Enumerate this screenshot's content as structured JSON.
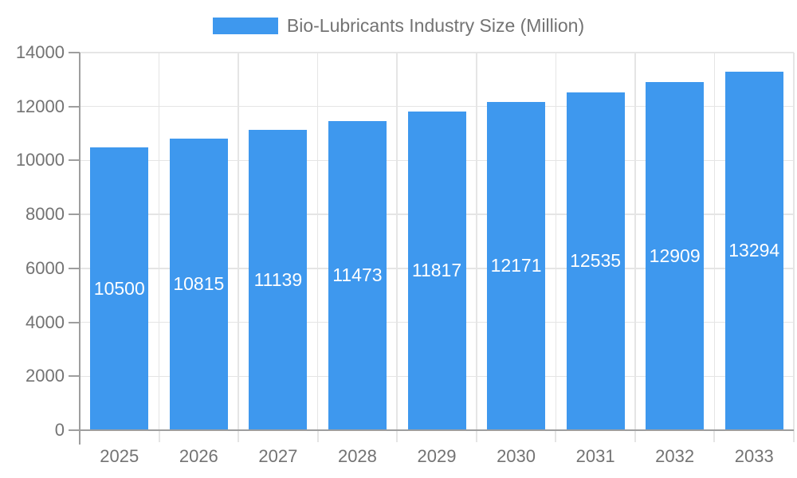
{
  "legend": {
    "label": "Bio-Lubricants Industry Size (Million)"
  },
  "chart_data": {
    "type": "bar",
    "title": "Bio-Lubricants Industry Size (Million)",
    "categories": [
      "2025",
      "2026",
      "2027",
      "2028",
      "2029",
      "2030",
      "2031",
      "2032",
      "2033"
    ],
    "values": [
      10500,
      10815,
      11139,
      11473,
      11817,
      12171,
      12535,
      12909,
      13294
    ],
    "series_name": "Bio-Lubricants Industry Size (Million)",
    "xlabel": "",
    "ylabel": "",
    "ylim": [
      0,
      14000
    ],
    "yticks": [
      0,
      2000,
      4000,
      6000,
      8000,
      10000,
      12000,
      14000
    ],
    "grid": true,
    "legend_position": "top-center",
    "value_labels": "inside-center"
  },
  "colors": {
    "bar": "#3E98EE",
    "grid": "#E5E5E5",
    "axis": "#9E9E9E",
    "tick_label": "#737373",
    "legend_label": "#737373",
    "value_label": "#FFFFFF",
    "background": "#FFFFFF"
  }
}
